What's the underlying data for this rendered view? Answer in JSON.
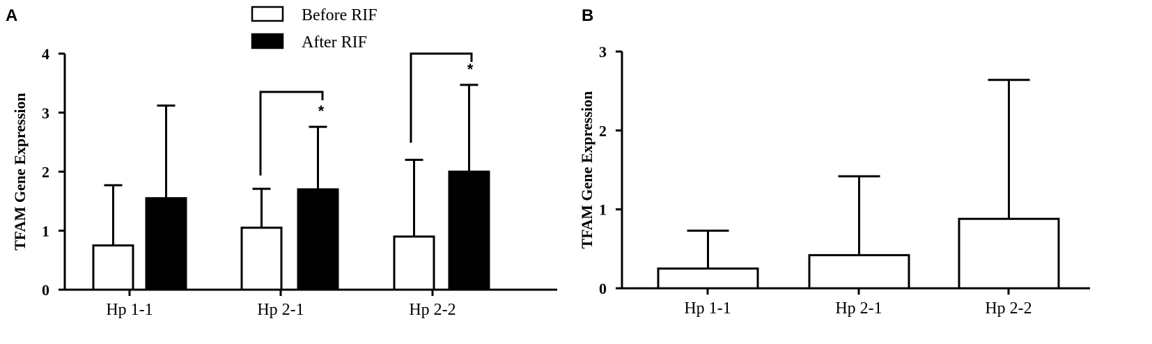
{
  "chart_data": [
    {
      "panel": "A",
      "type": "bar",
      "ylabel": "TFAM Gene Expression",
      "ylim": [
        0,
        4
      ],
      "yticks": [
        "0",
        "1",
        "2",
        "3",
        "4"
      ],
      "categories": [
        "Hp 1-1",
        "Hp 2-1",
        "Hp 2-2"
      ],
      "series": [
        {
          "name": "Before RIF",
          "fill": "#ffffff",
          "values": [
            0.75,
            1.05,
            0.9
          ],
          "errors": [
            1.02,
            0.66,
            1.3
          ]
        },
        {
          "name": "After RIF",
          "fill": "#000000",
          "values": [
            1.55,
            1.7,
            2.0
          ],
          "errors": [
            1.57,
            1.06,
            1.47
          ]
        }
      ],
      "legend_position": "top-center",
      "significance": [
        {
          "category": 1,
          "label": "*"
        },
        {
          "category": 2,
          "label": "*"
        }
      ]
    },
    {
      "panel": "B",
      "type": "bar",
      "ylabel": "TFAM Gene Expression",
      "ylim": [
        0,
        3
      ],
      "yticks": [
        "0",
        "1",
        "2",
        "3"
      ],
      "categories": [
        "Hp 1-1",
        "Hp 2-1",
        "Hp 2-2"
      ],
      "series": [
        {
          "fill": "#ffffff",
          "values": [
            0.25,
            0.42,
            0.88
          ],
          "errors": [
            0.48,
            1.0,
            1.76
          ]
        }
      ]
    }
  ]
}
